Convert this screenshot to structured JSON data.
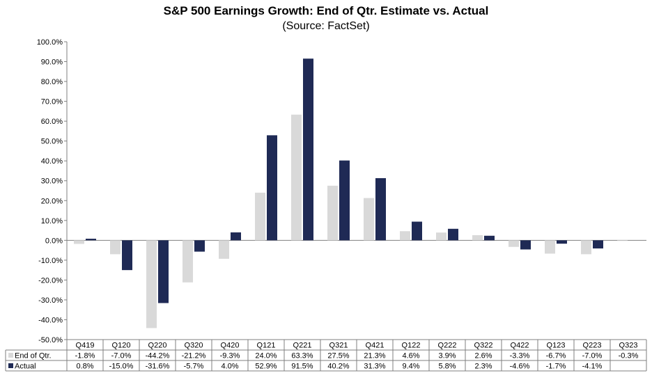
{
  "chart_data": {
    "type": "bar",
    "title": "S&P 500 Earnings Growth: End of Qtr. Estimate vs. Actual",
    "subtitle": "(Source: FactSet)",
    "categories": [
      "Q419",
      "Q120",
      "Q220",
      "Q320",
      "Q420",
      "Q121",
      "Q221",
      "Q321",
      "Q421",
      "Q122",
      "Q222",
      "Q322",
      "Q422",
      "Q123",
      "Q223",
      "Q323"
    ],
    "series": [
      {
        "name": "End of Qtr.",
        "color": "#d9d9d9",
        "values": [
          -1.8,
          -7.0,
          -44.2,
          -21.2,
          -9.3,
          24.0,
          63.3,
          27.5,
          21.3,
          4.6,
          3.9,
          2.6,
          -3.3,
          -6.7,
          -7.0,
          -0.3
        ],
        "labels": [
          "-1.8%",
          "-7.0%",
          "-44.2%",
          "-21.2%",
          "-9.3%",
          "24.0%",
          "63.3%",
          "27.5%",
          "21.3%",
          "4.6%",
          "3.9%",
          "2.6%",
          "-3.3%",
          "-6.7%",
          "-7.0%",
          "-0.3%"
        ]
      },
      {
        "name": "Actual",
        "color": "#1f2a55",
        "values": [
          0.8,
          -15.0,
          -31.6,
          -5.7,
          4.0,
          52.9,
          91.5,
          40.2,
          31.3,
          9.4,
          5.8,
          2.3,
          -4.6,
          -1.7,
          -4.1,
          null
        ],
        "labels": [
          "0.8%",
          "-15.0%",
          "-31.6%",
          "-5.7%",
          "4.0%",
          "52.9%",
          "91.5%",
          "40.2%",
          "31.3%",
          "9.4%",
          "5.8%",
          "2.3%",
          "-4.6%",
          "-1.7%",
          "-4.1%",
          ""
        ]
      }
    ],
    "ylim": [
      -50,
      100
    ],
    "yticks": [
      100,
      90,
      80,
      70,
      60,
      50,
      40,
      30,
      20,
      10,
      0,
      -10,
      -20,
      -30,
      -40,
      -50
    ],
    "ytick_labels": [
      "100.0%",
      "90.0%",
      "80.0%",
      "70.0%",
      "60.0%",
      "50.0%",
      "40.0%",
      "30.0%",
      "20.0%",
      "10.0%",
      "0.0%",
      "-10.0%",
      "-20.0%",
      "-30.0%",
      "-40.0%",
      "-50.0%"
    ],
    "grid": false,
    "legend": "data-table-below"
  }
}
